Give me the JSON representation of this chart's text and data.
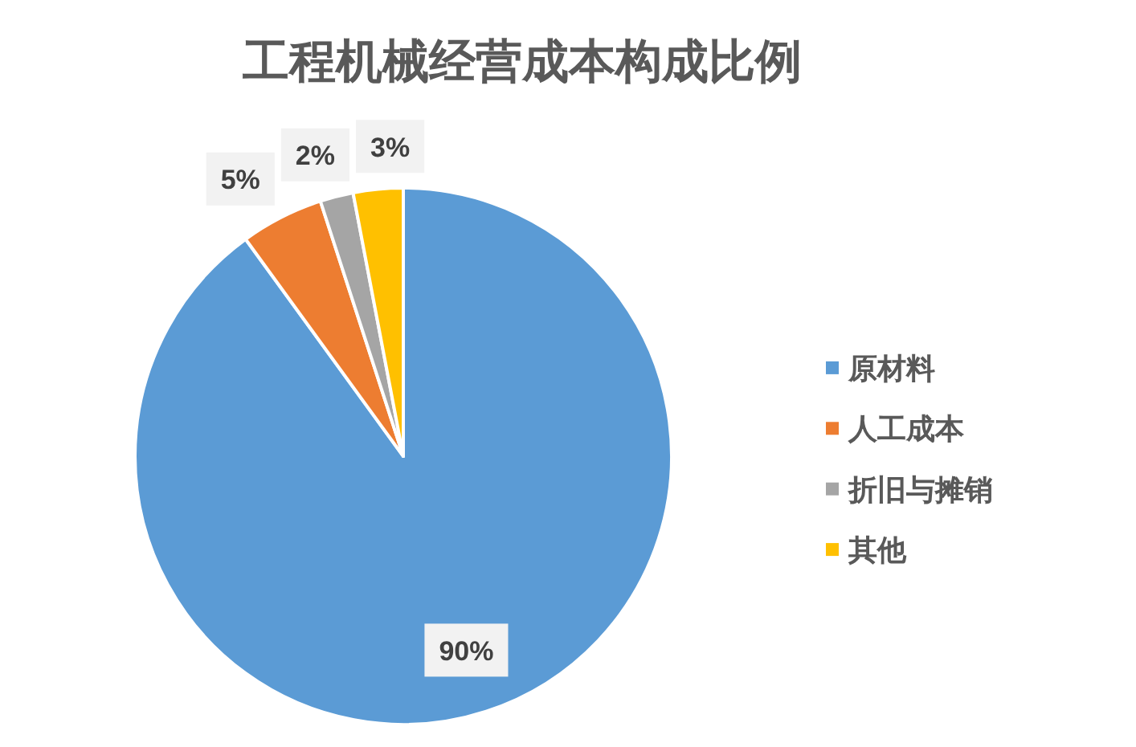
{
  "chart_data": {
    "type": "pie",
    "title": "工程机械经营成本构成比例",
    "categories": [
      "原材料",
      "人工成本",
      "折旧与摊销",
      "其他"
    ],
    "values": [
      90,
      5,
      2,
      3
    ],
    "colors": [
      "#5b9bd5",
      "#ed7d31",
      "#a5a5a5",
      "#ffc000"
    ],
    "value_labels": [
      "90%",
      "5%",
      "2%",
      "3%"
    ],
    "legend": "right"
  }
}
